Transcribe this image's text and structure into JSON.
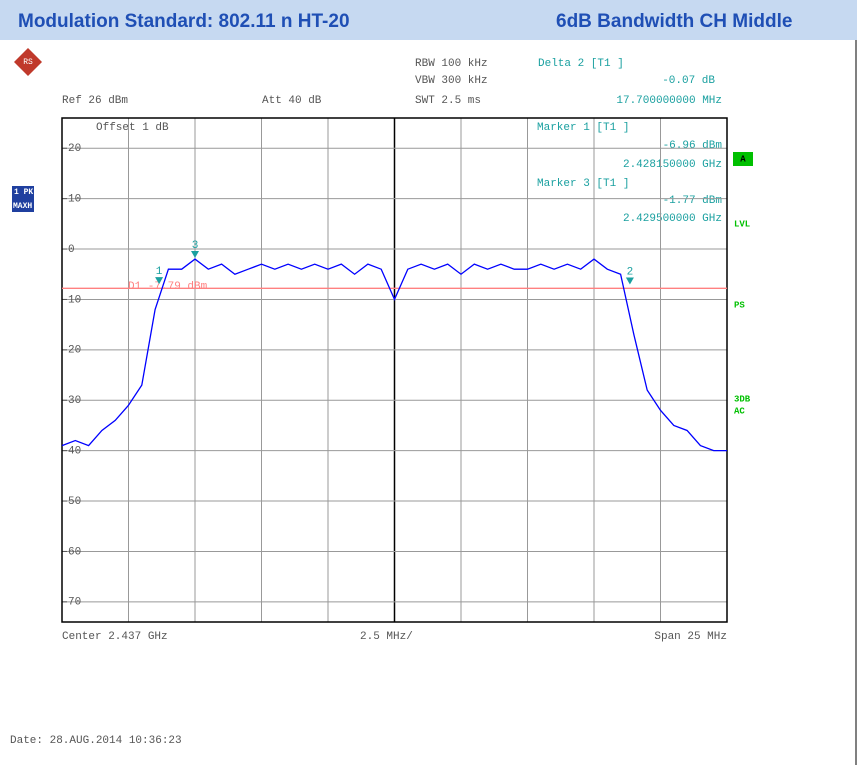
{
  "header": {
    "title": "Modulation Standard: 802.11 n HT-20",
    "subtitle": "6dB Bandwidth CH Middle"
  },
  "info": {
    "rbw": "RBW 100 kHz",
    "vbw": "VBW 300 kHz",
    "swt": "SWT 2.5 ms",
    "ref": "Ref  26 dBm",
    "att": "Att  40 dB",
    "delta_title": "Delta 2 [T1 ]",
    "delta_level": "-0.07 dB",
    "delta_freq": "17.700000000 MHz",
    "marker1_title": "Marker 1 [T1 ]",
    "marker1_level": "-6.96 dBm",
    "marker1_freq": "2.428150000 GHz",
    "marker3_title": "Marker 3 [T1 ]",
    "marker3_level": "-1.77 dBm",
    "marker3_freq": "2.429500000 GHz",
    "offset": "Offset  1 dB",
    "trace_label_1": "1 PK",
    "trace_label_2": "MAXH",
    "side_a": "A",
    "side_lvl": "LVL",
    "side_ps": "PS",
    "side_3db": "3DB",
    "side_ac": "AC",
    "center": "Center 2.437 GHz",
    "per_div": "2.5 MHz/",
    "span": "Span 25 MHz",
    "date": "Date: 28.AUG.2014  10:36:23"
  },
  "chart_data": {
    "type": "line",
    "color": "#0000ff",
    "x": [
      2424.5,
      2425,
      2425.5,
      2426,
      2426.5,
      2427,
      2427.5,
      2428,
      2428.5,
      2429,
      2429.5,
      2430,
      2430.5,
      2431,
      2431.5,
      2432,
      2432.5,
      2433,
      2433.5,
      2434,
      2434.5,
      2435,
      2435.5,
      2436,
      2436.5,
      2437,
      2437.5,
      2438,
      2438.5,
      2439,
      2439.5,
      2440,
      2440.5,
      2441,
      2441.5,
      2442,
      2442.5,
      2443,
      2443.5,
      2444,
      2444.5,
      2445,
      2445.5,
      2446,
      2446.5,
      2447,
      2447.5,
      2448,
      2448.5,
      2449,
      2449.5
    ],
    "values": [
      -39,
      -38,
      -39,
      -36,
      -34,
      -31,
      -27,
      -12,
      -4,
      -4,
      -2,
      -4,
      -3,
      -5,
      -4,
      -3,
      -4,
      -3,
      -4,
      -3,
      -4,
      -3,
      -5,
      -3,
      -4,
      -10,
      -4,
      -3,
      -4,
      -3,
      -5,
      -3,
      -4,
      -3,
      -4,
      -4,
      -3,
      -4,
      -3,
      -4,
      -2,
      -4,
      -5,
      -17,
      -28,
      -32,
      -35,
      -36,
      -39,
      -40,
      -40
    ],
    "xlim": [
      2424.5,
      2449.5
    ],
    "ylim": [
      -74,
      26
    ],
    "yticks": [
      20,
      10,
      0,
      {
        "value": -10,
        "label": "10"
      },
      {
        "value": -20,
        "label": "20"
      },
      {
        "value": -30,
        "label": "30"
      },
      {
        "value": -40,
        "label": "40"
      },
      {
        "value": -50,
        "label": "50"
      },
      {
        "value": -60,
        "label": "60"
      },
      {
        "value": -70,
        "label": "70"
      }
    ],
    "grid": true,
    "display_line": {
      "label": "D1 -7.79 dBm",
      "value": -7.79,
      "color": "#ff8080"
    },
    "markers": [
      {
        "label": "1",
        "x": 2428.15,
        "y": -6.96
      },
      {
        "label": "2",
        "x": 2445.85,
        "y": -7.03
      },
      {
        "label": "3",
        "x": 2429.5,
        "y": -1.77
      }
    ]
  }
}
